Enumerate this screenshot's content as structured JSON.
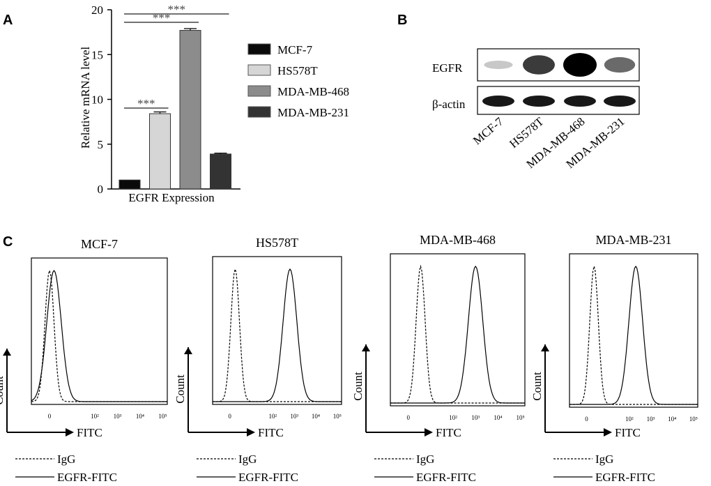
{
  "panels": {
    "a": "A",
    "b": "B",
    "c": "C"
  },
  "chart_data": [
    {
      "type": "bar",
      "panel": "A",
      "ylabel": "Relative mRNA level",
      "xlabel": "EGFR Expression",
      "ylim": [
        0,
        20
      ],
      "yticks": [
        "0",
        "5",
        "10",
        "15",
        "20"
      ],
      "series": [
        {
          "name": "MCF-7",
          "values": [
            1.0
          ],
          "error": 0.0,
          "color": "#0a0a0a"
        },
        {
          "name": "HS578T",
          "values": [
            8.4
          ],
          "error": 0.2,
          "color": "#d6d6d6"
        },
        {
          "name": "MDA-MB-468",
          "values": [
            17.7
          ],
          "error": 0.2,
          "color": "#8c8c8c"
        },
        {
          "name": "MDA-MB-231",
          "values": [
            3.9
          ],
          "error": 0.1,
          "color": "#333333"
        }
      ],
      "significance": [
        {
          "from": "MCF-7",
          "to": "HS578T",
          "label": "***"
        },
        {
          "from": "MCF-7",
          "to": "MDA-MB-468",
          "label": "***"
        },
        {
          "from": "MCF-7",
          "to": "MDA-MB-231",
          "label": "***"
        }
      ]
    },
    {
      "type": "blot",
      "panel": "B",
      "rows": [
        "EGFR",
        "β-actin"
      ],
      "lanes": [
        "MCF-7",
        "HS578T",
        "MDA-MB-468",
        "MDA-MB-231"
      ],
      "band_intensity": {
        "EGFR": [
          0.15,
          0.75,
          1.0,
          0.55
        ],
        "β-actin": [
          0.9,
          0.9,
          0.9,
          0.9
        ]
      }
    },
    {
      "type": "histogram",
      "panel": "C",
      "xlabel": "FITC",
      "ylabel": "Count",
      "xticks": [
        "0",
        "10²",
        "10³",
        "10⁴",
        "10⁵"
      ],
      "legend": [
        {
          "name": "IgG",
          "style": "dashed"
        },
        {
          "name": "EGFR-FITC",
          "style": "solid"
        }
      ],
      "plots": [
        {
          "title": "MCF-7",
          "igg_peak": 0.0,
          "egfr_peak": 0.2
        },
        {
          "title": "HS578T",
          "igg_peak": 0.25,
          "egfr_peak": 2.8
        },
        {
          "title": "MDA-MB-468",
          "igg_peak": 0.55,
          "egfr_peak": 3.0
        },
        {
          "title": "MDA-MB-231",
          "igg_peak": 0.35,
          "egfr_peak": 2.3
        }
      ]
    }
  ]
}
